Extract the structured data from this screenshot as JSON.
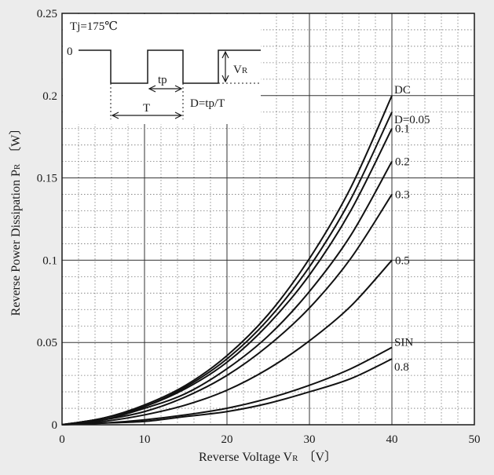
{
  "chart_data": {
    "type": "line",
    "xlabel": "Reverse Voltage V",
    "xlabel_sub": "R",
    "xlabel_unit": "〔V〕",
    "ylabel": "Reverse Power Dissipation P",
    "ylabel_sub": "R",
    "ylabel_unit": "〔W〕",
    "xlim": [
      0,
      50
    ],
    "ylim": [
      0,
      0.25
    ],
    "xticks": [
      "0",
      "10",
      "20",
      "30",
      "40",
      "50"
    ],
    "yticks": [
      "0",
      "0.05",
      "0.1",
      "0.15",
      "0.2",
      "0.25"
    ],
    "grid": "major solid, minor dotted",
    "series": [
      {
        "name": "DC",
        "x": [
          0,
          5,
          10,
          15,
          20,
          25,
          30,
          35,
          40
        ],
        "y": [
          0,
          0.004,
          0.012,
          0.024,
          0.042,
          0.067,
          0.101,
          0.144,
          0.2
        ]
      },
      {
        "name": "D=0.05",
        "x": [
          0,
          5,
          10,
          15,
          20,
          25,
          30,
          35,
          40
        ],
        "y": [
          0,
          0.004,
          0.011,
          0.023,
          0.04,
          0.064,
          0.096,
          0.137,
          0.19
        ]
      },
      {
        "name": "0.1",
        "x": [
          0,
          5,
          10,
          15,
          20,
          25,
          30,
          35,
          40
        ],
        "y": [
          0,
          0.004,
          0.011,
          0.022,
          0.038,
          0.061,
          0.091,
          0.13,
          0.18
        ]
      },
      {
        "name": "0.2",
        "x": [
          0,
          5,
          10,
          15,
          20,
          25,
          30,
          35,
          40
        ],
        "y": [
          0,
          0.003,
          0.01,
          0.019,
          0.034,
          0.054,
          0.081,
          0.115,
          0.16
        ]
      },
      {
        "name": "0.3",
        "x": [
          0,
          5,
          10,
          15,
          20,
          25,
          30,
          35,
          40
        ],
        "y": [
          0,
          0.003,
          0.008,
          0.017,
          0.03,
          0.048,
          0.071,
          0.101,
          0.14
        ]
      },
      {
        "name": "0.5",
        "x": [
          0,
          5,
          10,
          15,
          20,
          25,
          30,
          35,
          40
        ],
        "y": [
          0,
          0.002,
          0.006,
          0.012,
          0.021,
          0.034,
          0.051,
          0.072,
          0.1
        ]
      },
      {
        "name": "SIN",
        "x": [
          0,
          5,
          10,
          15,
          20,
          25,
          30,
          35,
          40
        ],
        "y": [
          0,
          0.001,
          0.003,
          0.006,
          0.01,
          0.016,
          0.024,
          0.034,
          0.047
        ]
      },
      {
        "name": "0.8",
        "x": [
          0,
          5,
          10,
          15,
          20,
          25,
          30,
          35,
          40
        ],
        "y": [
          0,
          0.001,
          0.002,
          0.005,
          0.008,
          0.013,
          0.02,
          0.028,
          0.04
        ]
      }
    ]
  },
  "inset": {
    "tj": "Tj=175℃",
    "zero": "0",
    "vr": "V",
    "vr_sub": "R",
    "tp": "tp",
    "T": "T",
    "duty": "D=tp/T"
  }
}
